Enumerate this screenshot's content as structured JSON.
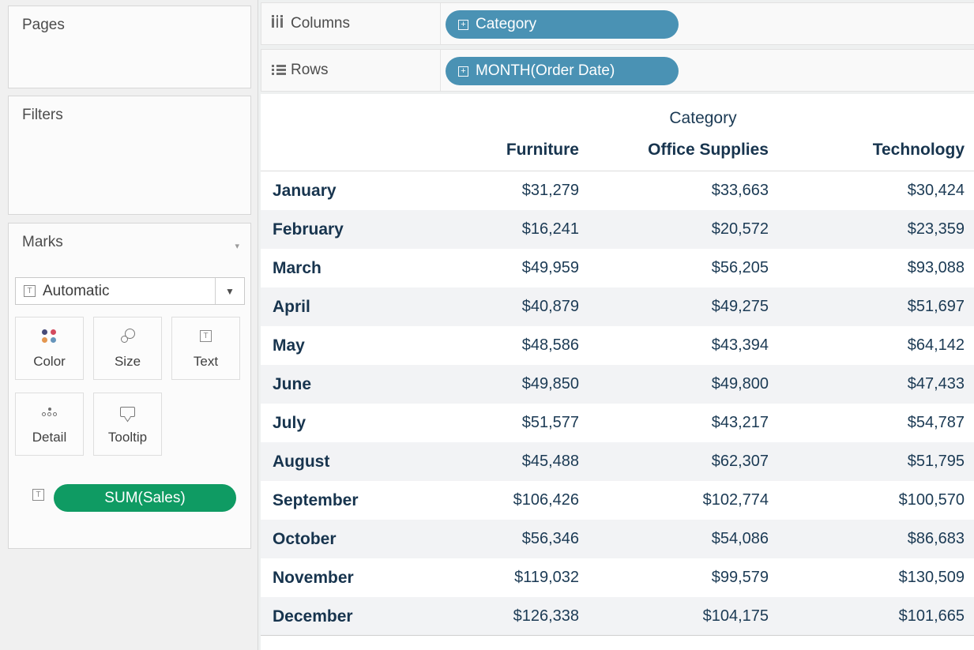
{
  "colors": {
    "dimension_pill_blue": "#4a92b4",
    "measure_pill_green": "#0f9b63",
    "table_text_navy": "#17344e",
    "row_band": "#f2f3f5",
    "color_icon_dots": [
      "#474b78",
      "#d34a5e",
      "#e39650",
      "#6695bb"
    ]
  },
  "left_panel": {
    "pages": {
      "title": "Pages"
    },
    "filters": {
      "title": "Filters"
    },
    "marks": {
      "title": "Marks",
      "mark_type_selector": {
        "value": "Automatic",
        "icon": "text-mark-icon"
      },
      "buttons": [
        {
          "label": "Color",
          "icon": "color-icon"
        },
        {
          "label": "Size",
          "icon": "size-icon"
        },
        {
          "label": "Text",
          "icon": "text-icon"
        },
        {
          "label": "Detail",
          "icon": "detail-icon"
        },
        {
          "label": "Tooltip",
          "icon": "tooltip-icon"
        }
      ],
      "encoding_pill": {
        "label": "SUM(Sales)",
        "target": "Text"
      }
    }
  },
  "shelves": {
    "columns": {
      "label": "Columns",
      "pill": "Category"
    },
    "rows": {
      "label": "Rows",
      "pill": "MONTH(Order Date)"
    }
  },
  "chart_data": {
    "type": "table",
    "title": "Category",
    "column_dimension": "Category",
    "row_dimension": "MONTH(Order Date)",
    "measure": "SUM(Sales)",
    "columns": [
      "Furniture",
      "Office Supplies",
      "Technology"
    ],
    "rows": [
      "January",
      "February",
      "March",
      "April",
      "May",
      "June",
      "July",
      "August",
      "September",
      "October",
      "November",
      "December"
    ],
    "values": [
      [
        "$31,279",
        "$33,663",
        "$30,424"
      ],
      [
        "$16,241",
        "$20,572",
        "$23,359"
      ],
      [
        "$49,959",
        "$56,205",
        "$93,088"
      ],
      [
        "$40,879",
        "$49,275",
        "$51,697"
      ],
      [
        "$48,586",
        "$43,394",
        "$64,142"
      ],
      [
        "$49,850",
        "$49,800",
        "$47,433"
      ],
      [
        "$51,577",
        "$43,217",
        "$54,787"
      ],
      [
        "$45,488",
        "$62,307",
        "$51,795"
      ],
      [
        "$106,426",
        "$102,774",
        "$100,570"
      ],
      [
        "$56,346",
        "$54,086",
        "$86,683"
      ],
      [
        "$119,032",
        "$99,579",
        "$130,509"
      ],
      [
        "$126,338",
        "$104,175",
        "$101,665"
      ]
    ]
  }
}
